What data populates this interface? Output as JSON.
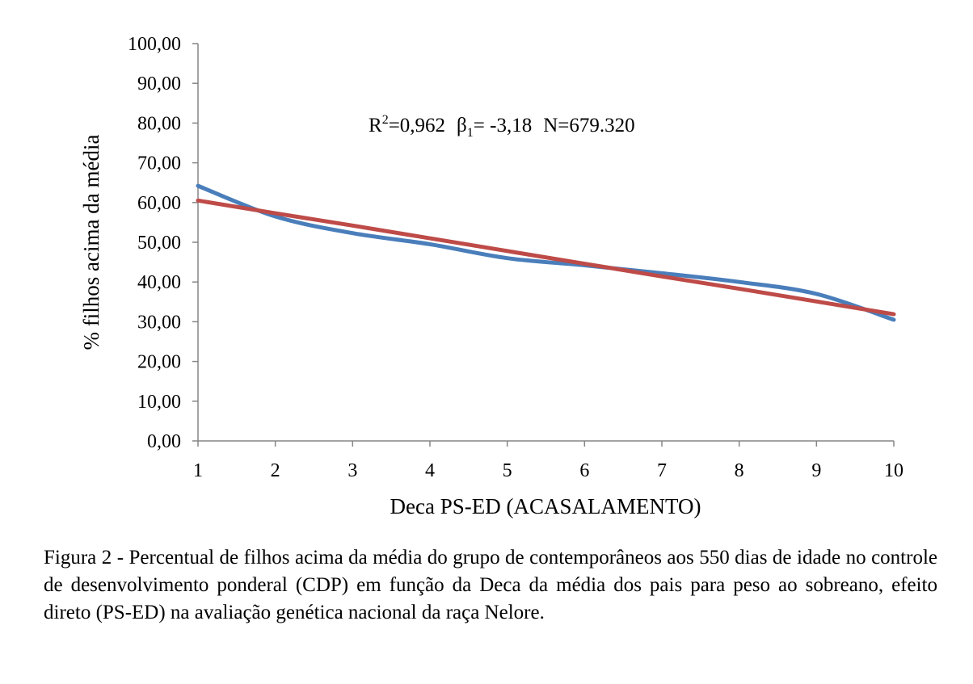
{
  "chart_data": {
    "type": "line",
    "x": [
      1,
      2,
      3,
      4,
      5,
      6,
      7,
      8,
      9,
      10
    ],
    "xticks": [
      "1",
      "2",
      "3",
      "4",
      "5",
      "6",
      "7",
      "8",
      "9",
      "10"
    ],
    "xlabel": "Deca PS-ED (ACASALAMENTO)",
    "ylabel": "% filhos acima da média",
    "ylim": [
      0,
      100
    ],
    "yticks": [
      "0,00",
      "10,00",
      "20,00",
      "30,00",
      "40,00",
      "50,00",
      "60,00",
      "70,00",
      "80,00",
      "90,00",
      "100,00"
    ],
    "grid": false,
    "series": [
      {
        "values": [
          64.2,
          56.5,
          52.3,
          49.5,
          46.0,
          44.2,
          42.2,
          40.0,
          37.0,
          30.5
        ],
        "color": "#4a7ebb",
        "style": "smooth"
      },
      {
        "values": [
          60.5,
          57.3,
          54.2,
          51.0,
          47.8,
          44.6,
          41.4,
          38.3,
          35.1,
          31.9
        ],
        "color": "#be4b48",
        "style": "straight"
      }
    ],
    "annotation": {
      "r2_prefix": "R",
      "r2_sup": "2",
      "r2_value": "=0,962",
      "beta_symbol": "β",
      "beta_sub": "1",
      "beta_value": "= -3,18",
      "n_text": "N=679.320"
    }
  },
  "caption": "Figura 2 - Percentual de filhos acima da média do grupo de contemporâneos aos 550 dias de idade no controle de desenvolvimento ponderal (CDP) em função da Deca da média dos pais para peso ao sobreano, efeito direto (PS-ED) na avaliação genética nacional da raça Nelore."
}
